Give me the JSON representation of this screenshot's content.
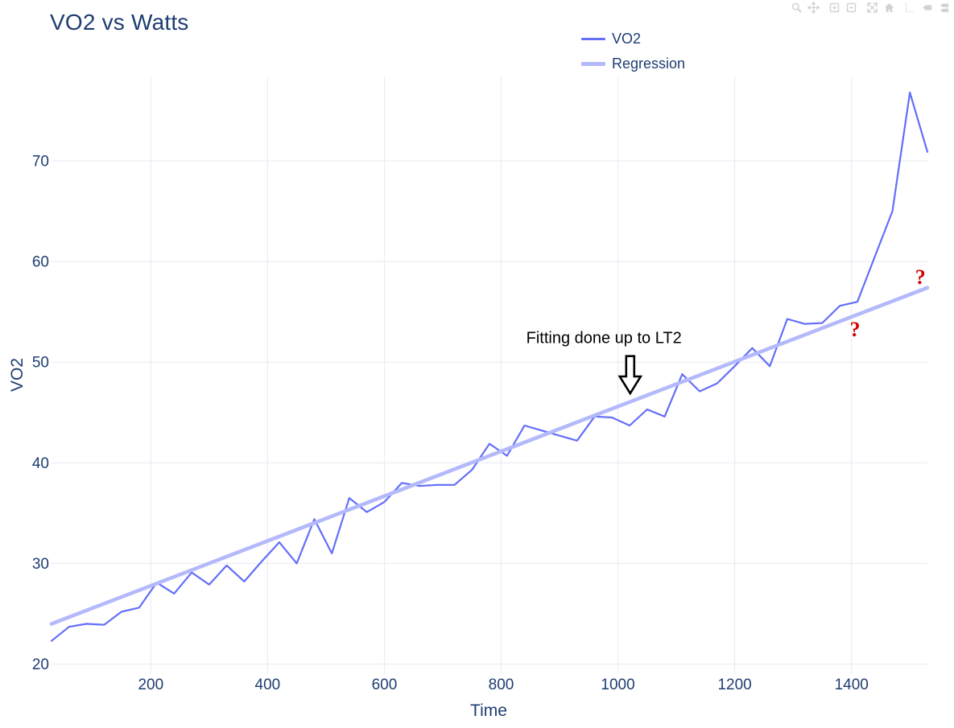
{
  "chart_data": {
    "type": "line",
    "title": "VO2 vs Watts",
    "xlabel": "Time",
    "ylabel": "VO2",
    "xlim": [
      30,
      1530
    ],
    "ylim": [
      19,
      78.4
    ],
    "xticks": [
      200,
      400,
      600,
      800,
      1000,
      1200,
      1400
    ],
    "yticks": [
      20,
      30,
      40,
      50,
      60,
      70
    ],
    "grid": true,
    "legend_position": "top-center",
    "series": [
      {
        "name": "VO2",
        "color": "#636efa",
        "width": 2.2,
        "points": [
          [
            30,
            22.3
          ],
          [
            60,
            23.7
          ],
          [
            90,
            24.0
          ],
          [
            120,
            23.9
          ],
          [
            150,
            25.2
          ],
          [
            180,
            25.6
          ],
          [
            210,
            28.1
          ],
          [
            240,
            27.0
          ],
          [
            270,
            29.1
          ],
          [
            300,
            27.9
          ],
          [
            330,
            29.8
          ],
          [
            360,
            28.2
          ],
          [
            390,
            30.2
          ],
          [
            420,
            32.1
          ],
          [
            450,
            30.0
          ],
          [
            480,
            34.4
          ],
          [
            510,
            31.0
          ],
          [
            540,
            36.5
          ],
          [
            570,
            35.1
          ],
          [
            600,
            36.1
          ],
          [
            630,
            38.0
          ],
          [
            660,
            37.7
          ],
          [
            690,
            37.8
          ],
          [
            720,
            37.8
          ],
          [
            750,
            39.3
          ],
          [
            780,
            41.9
          ],
          [
            810,
            40.7
          ],
          [
            840,
            43.7
          ],
          [
            870,
            43.2
          ],
          [
            900,
            42.7
          ],
          [
            930,
            42.2
          ],
          [
            960,
            44.6
          ],
          [
            990,
            44.5
          ],
          [
            1020,
            43.7
          ],
          [
            1050,
            45.3
          ],
          [
            1080,
            44.6
          ],
          [
            1110,
            48.8
          ],
          [
            1140,
            47.1
          ],
          [
            1170,
            47.9
          ],
          [
            1200,
            49.6
          ],
          [
            1230,
            51.4
          ],
          [
            1260,
            49.6
          ],
          [
            1290,
            54.3
          ],
          [
            1320,
            53.8
          ],
          [
            1350,
            53.9
          ],
          [
            1380,
            55.6
          ],
          [
            1410,
            56.0
          ],
          [
            1440,
            60.5
          ],
          [
            1470,
            65.0
          ],
          [
            1500,
            76.8
          ],
          [
            1530,
            70.9
          ]
        ]
      },
      {
        "name": "Regression",
        "color": "#b3b9fb",
        "width": 4.6,
        "points": [
          [
            30,
            24.0
          ],
          [
            1530,
            57.4
          ]
        ]
      }
    ],
    "annotations": [
      {
        "text": "Fitting done up to LT2",
        "text_x": 976,
        "text_v": 52.3,
        "arrow_x": 1021,
        "arrow_top_v": 50.6,
        "arrow_tip_v": 46.9
      }
    ],
    "question_marks": [
      {
        "label": "?",
        "x": 1518,
        "v": 58.4
      },
      {
        "label": "?",
        "x": 1406,
        "v": 53.2
      }
    ]
  },
  "colors": {
    "text": "#1e3d72",
    "grid": "#e7eaf2",
    "vo2_line": "#636efa",
    "regression_line": "#b3b9fb",
    "annotation_text": "#000000",
    "question_mark": "#d60000",
    "background": "#ffffff"
  },
  "modebar": {
    "buttons": [
      {
        "name": "zoom"
      },
      {
        "name": "pan"
      },
      {
        "name": "zoom-in"
      },
      {
        "name": "zoom-out"
      },
      {
        "name": "autoscale"
      },
      {
        "name": "reset-axes"
      },
      {
        "name": "toggle-spikelines"
      },
      {
        "name": "show-closest-on-hover"
      },
      {
        "name": "compare-data-on-hover"
      }
    ]
  }
}
